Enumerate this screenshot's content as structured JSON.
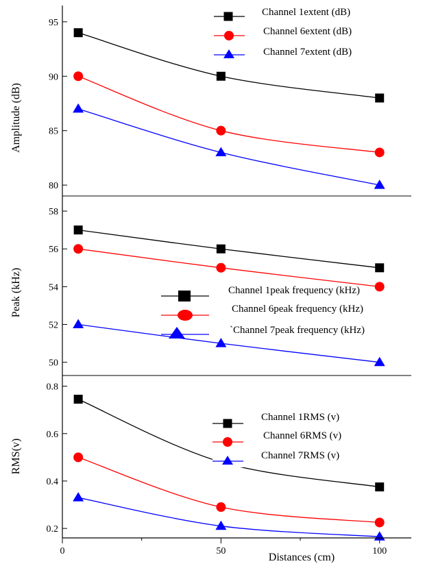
{
  "colors": {
    "channel1": "#000000",
    "channel6": "#ff0000",
    "channel7": "#0000ff"
  },
  "chart_data": [
    {
      "type": "line",
      "panel": "amplitude",
      "xlabel": "",
      "ylabel": "Amplitude (dB)",
      "x": [
        5,
        50,
        100
      ],
      "xlim": [
        0,
        110
      ],
      "ylim": [
        79,
        96.5
      ],
      "yticks": [
        80,
        85,
        90,
        95
      ],
      "ytick_labels": [
        "80",
        "85",
        "90",
        "95"
      ],
      "legend_position": "top-right",
      "series": [
        {
          "name": "Channel 1extent (dB)",
          "color": "#000000",
          "marker": "square",
          "values": [
            94,
            90,
            88
          ]
        },
        {
          "name": "Channel 6extent (dB)",
          "color": "#ff0000",
          "marker": "circle",
          "values": [
            90,
            85,
            83
          ]
        },
        {
          "name": "Channel 7extent (dB)",
          "color": "#0000ff",
          "marker": "triangle",
          "values": [
            87,
            83,
            80
          ]
        }
      ]
    },
    {
      "type": "line",
      "panel": "peak",
      "xlabel": "",
      "ylabel": "Peak (kHz)",
      "x": [
        5,
        50,
        100
      ],
      "xlim": [
        0,
        110
      ],
      "ylim": [
        49.3,
        58.8
      ],
      "yticks": [
        50,
        52,
        54,
        56,
        58
      ],
      "ytick_labels": [
        "50",
        "52",
        "54",
        "56",
        "58"
      ],
      "legend_position": "center-right",
      "series": [
        {
          "name": "Channel 1peak frequency (kHz)",
          "color": "#000000",
          "marker": "square",
          "values": [
            57,
            56,
            55
          ]
        },
        {
          "name": "Channel 6peak frequency (kHz)",
          "color": "#ff0000",
          "marker": "circle",
          "values": [
            56,
            55,
            54
          ]
        },
        {
          "name": "`Channel 7peak frequency (kHz)",
          "color": "#0000ff",
          "marker": "triangle",
          "values": [
            52,
            51,
            50
          ]
        }
      ]
    },
    {
      "type": "line",
      "panel": "rms",
      "xlabel": "Distances (cm)",
      "ylabel": "RMS(v)",
      "x": [
        5,
        50,
        100
      ],
      "xlim": [
        0,
        110
      ],
      "ylim": [
        0.16,
        0.845
      ],
      "yticks": [
        0.2,
        0.4,
        0.6,
        0.8
      ],
      "ytick_labels": [
        "0.2",
        "0.4",
        "0.6",
        "0.8"
      ],
      "xticks": [
        0,
        50,
        100
      ],
      "xtick_labels": [
        "0",
        "50",
        "100"
      ],
      "legend_position": "center-right",
      "series": [
        {
          "name": "Channel 1RMS (v)",
          "color": "#000000",
          "marker": "square",
          "values": [
            0.745,
            0.48,
            0.375
          ]
        },
        {
          "name": "Channel 6RMS (v)",
          "color": "#ff0000",
          "marker": "circle",
          "values": [
            0.5,
            0.29,
            0.225
          ]
        },
        {
          "name": "Channel 7RMS (v)",
          "color": "#0000ff",
          "marker": "triangle",
          "values": [
            0.33,
            0.21,
            0.165
          ]
        }
      ]
    }
  ]
}
